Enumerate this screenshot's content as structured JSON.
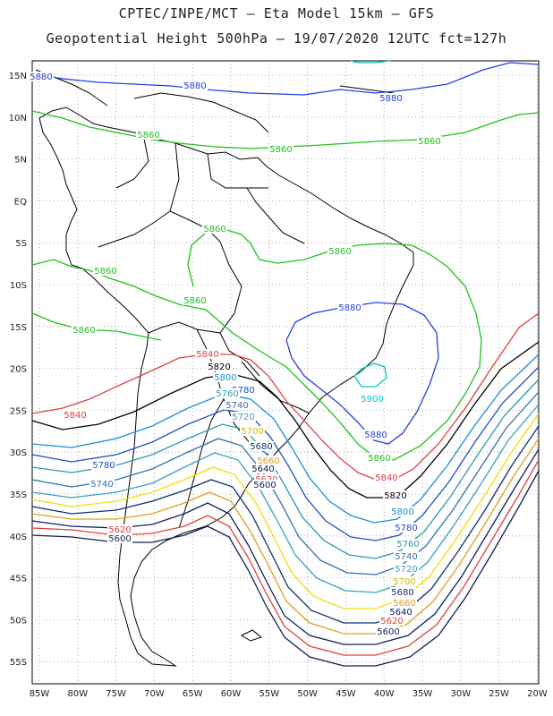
{
  "header": {
    "title_line1": "CPTEC/INPE/MCT –  Eta Model 15km – GFS",
    "title_line2": "Geopotential Height 500hPa – 19/07/2020 12UTC fct=127h"
  },
  "axes": {
    "lat_labels": [
      "15N",
      "10N",
      "5N",
      "EQ",
      "5S",
      "10S",
      "15S",
      "20S",
      "25S",
      "30S",
      "35S",
      "40S",
      "45S",
      "50S",
      "55S"
    ],
    "lon_labels": [
      "85W",
      "80W",
      "75W",
      "70W",
      "65W",
      "60W",
      "55W",
      "50W",
      "45W",
      "40W",
      "35W",
      "30W",
      "25W",
      "20W"
    ]
  },
  "contours": [
    {
      "level": "5900",
      "color": "#00c8c8"
    },
    {
      "level": "5880",
      "color": "#2040e0"
    },
    {
      "level": "5860",
      "color": "#20c020"
    },
    {
      "level": "5840",
      "color": "#e04040"
    },
    {
      "level": "5820",
      "color": "#000000"
    },
    {
      "level": "5800",
      "color": "#1a8fd0"
    },
    {
      "level": "5780",
      "color": "#2050c0"
    },
    {
      "level": "5760",
      "color": "#2a9ab0"
    },
    {
      "level": "5740",
      "color": "#3070b0"
    },
    {
      "level": "5720",
      "color": "#3aa0c0"
    },
    {
      "level": "5700",
      "color": "#f0e000"
    },
    {
      "level": "5680",
      "color": "#103070"
    },
    {
      "level": "5660",
      "color": "#e0a020"
    },
    {
      "level": "5640",
      "color": "#102060"
    },
    {
      "level": "5620",
      "color": "#e04040"
    },
    {
      "level": "5600",
      "color": "#102050"
    }
  ],
  "labels": [
    {
      "text": "5880",
      "color": "#2040e0"
    },
    {
      "text": "5880",
      "color": "#2040e0"
    },
    {
      "text": "5880",
      "color": "#2040e0"
    },
    {
      "text": "5880",
      "color": "#2040e0"
    },
    {
      "text": "5880",
      "color": "#2040e0"
    },
    {
      "text": "5860",
      "color": "#20c020"
    },
    {
      "text": "5860",
      "color": "#20c020"
    },
    {
      "text": "5860",
      "color": "#20c020"
    },
    {
      "text": "5860",
      "color": "#20c020"
    },
    {
      "text": "5860",
      "color": "#20c020"
    },
    {
      "text": "5860",
      "color": "#20c020"
    },
    {
      "text": "5860",
      "color": "#20c020"
    },
    {
      "text": "5860",
      "color": "#20c020"
    },
    {
      "text": "5860",
      "color": "#20c020"
    },
    {
      "text": "5900",
      "color": "#00c8c8"
    },
    {
      "text": "5840",
      "color": "#e04040"
    },
    {
      "text": "5840",
      "color": "#e04040"
    },
    {
      "text": "5840",
      "color": "#e04040"
    },
    {
      "text": "5820",
      "color": "#000000"
    },
    {
      "text": "5820",
      "color": "#000000"
    },
    {
      "text": "5800",
      "color": "#1a8fd0"
    },
    {
      "text": "5800",
      "color": "#1a8fd0"
    },
    {
      "text": "5780",
      "color": "#2050c0"
    },
    {
      "text": "5780",
      "color": "#2050c0"
    },
    {
      "text": "5780",
      "color": "#2050c0"
    },
    {
      "text": "5760",
      "color": "#2a9ab0"
    },
    {
      "text": "5760",
      "color": "#2a9ab0"
    },
    {
      "text": "5740",
      "color": "#3070b0"
    },
    {
      "text": "5740",
      "color": "#3070b0"
    },
    {
      "text": "5740",
      "color": "#3070b0"
    },
    {
      "text": "5720",
      "color": "#3aa0c0"
    },
    {
      "text": "5720",
      "color": "#3aa0c0"
    },
    {
      "text": "5700",
      "color": "#d0b800"
    },
    {
      "text": "5700",
      "color": "#d0b800"
    },
    {
      "text": "5680",
      "color": "#103070"
    },
    {
      "text": "5680",
      "color": "#103070"
    },
    {
      "text": "5660",
      "color": "#e0a020"
    },
    {
      "text": "5660",
      "color": "#e0a020"
    },
    {
      "text": "5640",
      "color": "#102060"
    },
    {
      "text": "5640",
      "color": "#102060"
    },
    {
      "text": "5620",
      "color": "#e04040"
    },
    {
      "text": "5620",
      "color": "#e04040"
    },
    {
      "text": "5620",
      "color": "#e04040"
    },
    {
      "text": "5600",
      "color": "#102050"
    },
    {
      "text": "5600",
      "color": "#102050"
    },
    {
      "text": "5600",
      "color": "#102050"
    }
  ]
}
